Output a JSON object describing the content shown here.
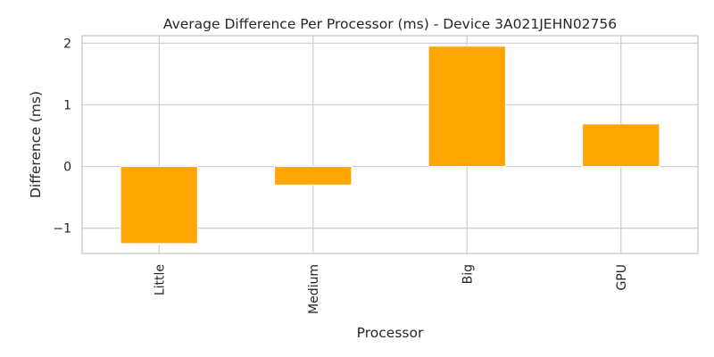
{
  "chart_data": {
    "type": "bar",
    "title": "Average Difference Per Processor (ms) - Device 3A021JEHN02756",
    "xlabel": "Processor",
    "ylabel": "Difference (ms)",
    "categories": [
      "Little",
      "Medium",
      "Big",
      "GPU"
    ],
    "values": [
      -1.25,
      -0.3,
      1.95,
      0.69
    ],
    "ylim": [
      -1.41,
      2.12
    ],
    "yticks": [
      -1,
      0,
      1,
      2
    ],
    "ytick_labels": [
      "−1",
      "0",
      "1",
      "2"
    ],
    "bar_color": "#ffa500",
    "grid": true,
    "legend": "none"
  }
}
